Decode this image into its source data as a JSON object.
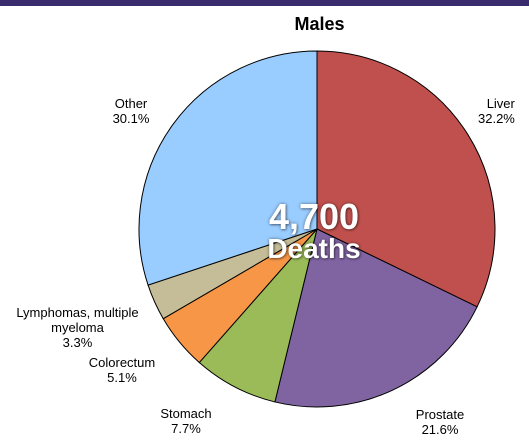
{
  "chart_data": {
    "type": "pie",
    "title": "Males",
    "center": {
      "value": "4,700",
      "unit": "Deaths"
    },
    "slices": [
      {
        "label": "Liver",
        "percent_text": "32.2%",
        "value": 32.2,
        "color": "#c0504d"
      },
      {
        "label": "Prostate",
        "percent_text": "21.6%",
        "value": 21.6,
        "color": "#8064a2"
      },
      {
        "label": "Stomach",
        "percent_text": "7.7%",
        "value": 7.7,
        "color": "#9bbb59"
      },
      {
        "label": "Colorectum",
        "percent_text": "5.1%",
        "value": 5.1,
        "color": "#f79646"
      },
      {
        "label": "Lymphomas, multiple myeloma",
        "percent_text": "3.3%",
        "value": 3.3,
        "color": "#c4bd97"
      },
      {
        "label": "Other",
        "percent_text": "30.1%",
        "value": 30.1,
        "color": "#99ccff"
      }
    ]
  }
}
